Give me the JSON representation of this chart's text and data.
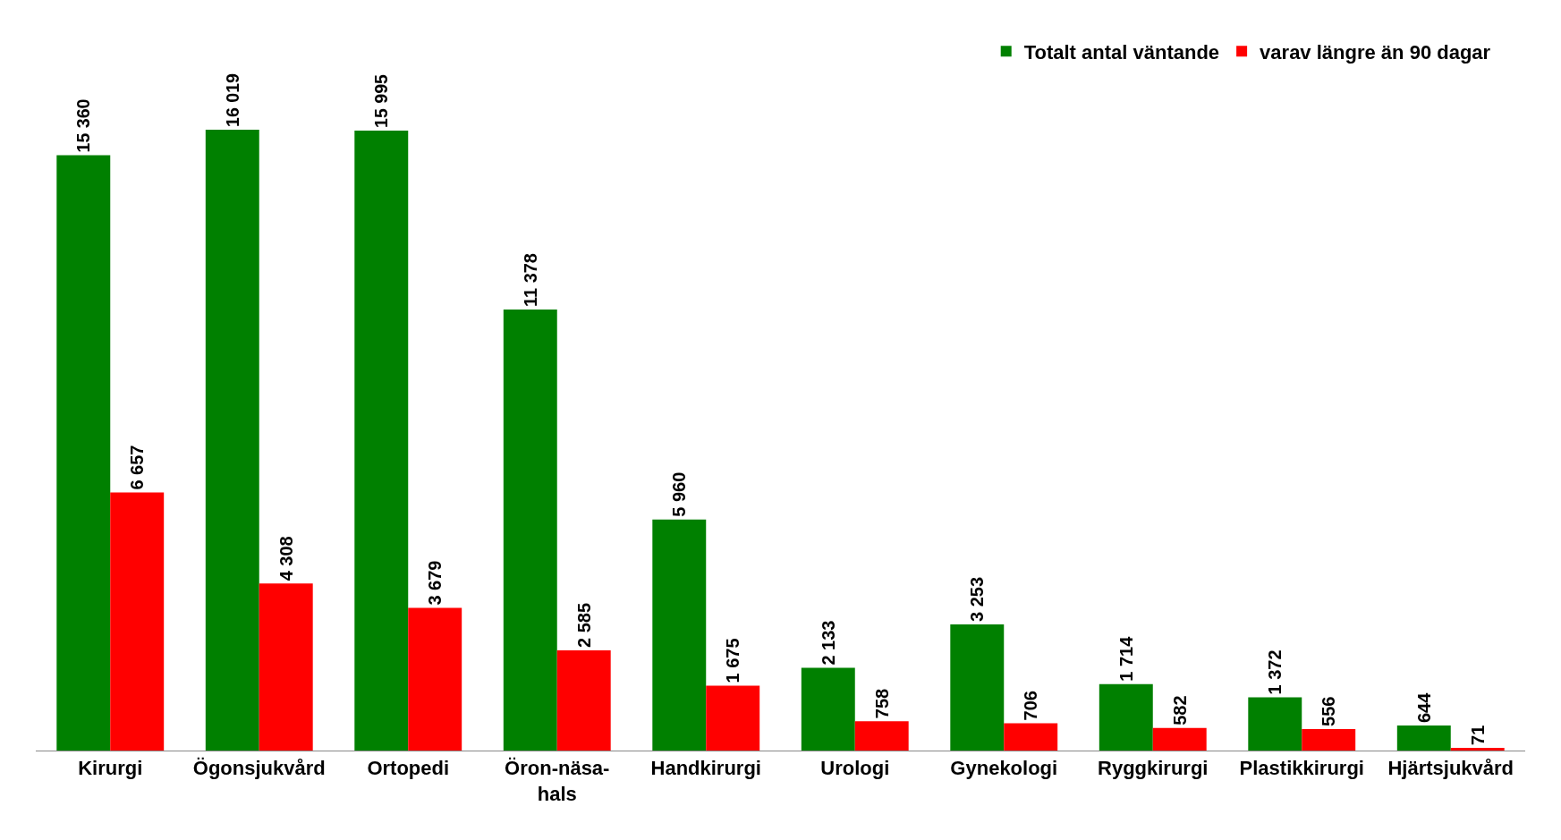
{
  "chart_data": {
    "type": "bar",
    "categories": [
      "Kirurgi",
      "Ögonsjukvård",
      "Ortopedi",
      "Öron-näsa-\nhals",
      "Handkirurgi",
      "Urologi",
      "Gynekologi",
      "Ryggkirurgi",
      "Plastikkirurgi",
      "Hjärtsjukvård"
    ],
    "series": [
      {
        "name": "Totalt antal väntande",
        "color": "#008000",
        "values": [
          15360,
          16019,
          15995,
          11378,
          5960,
          2133,
          3253,
          1714,
          1372,
          644
        ],
        "value_labels": [
          "15 360",
          "16 019",
          "15 995",
          "11 378",
          "5 960",
          "2 133",
          "3 253",
          "1 714",
          "1 372",
          "644"
        ]
      },
      {
        "name": "varav längre än 90 dagar",
        "color": "#ff0000",
        "values": [
          6657,
          4308,
          3679,
          2585,
          1675,
          758,
          706,
          582,
          556,
          71
        ],
        "value_labels": [
          "6 657",
          "4 308",
          "3 679",
          "2 585",
          "1 675",
          "758",
          "706",
          "582",
          "556",
          "71"
        ]
      }
    ],
    "legend": "top right",
    "tick_labels": "x"
  }
}
